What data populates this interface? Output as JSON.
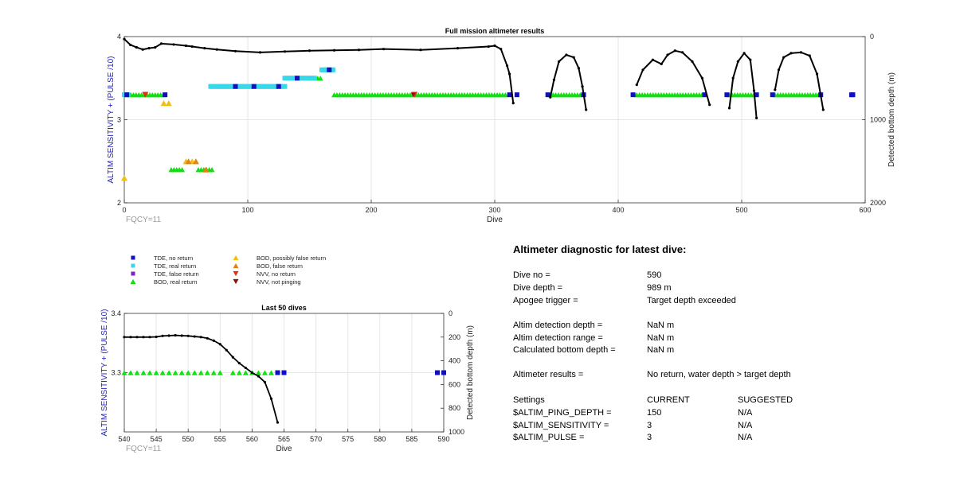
{
  "colors": {
    "tde_no_return": "#1010c0",
    "tde_real_return": "#38d8e8",
    "tde_false_return": "#8020c8",
    "bod_real_return": "#10e010",
    "bod_possibly_false": "#f0c010",
    "bod_false_return": "#e88010",
    "nvv_no_return": "#e03010",
    "nvv_not_pinging": "#901010",
    "depth_line": "#000000",
    "axis_label": "#2020c0"
  },
  "chart_data": [
    {
      "type": "scatter",
      "title": "Full mission altimeter results",
      "xlabel": "Dive",
      "ylabel": "ALTIM SENSITIVITY + (PULSE /10)",
      "ylabel_right": "Detected bottom depth (m)",
      "xlim": [
        0,
        600
      ],
      "ylim": [
        2,
        4
      ],
      "ylim_right": [
        0,
        2000
      ],
      "x_ticks": [
        "0",
        "100",
        "200",
        "300",
        "400",
        "500",
        "600"
      ],
      "y_ticks": [
        "2",
        "3",
        "4"
      ],
      "y_ticks_right": [
        "0",
        "1000",
        "2000"
      ],
      "grid": true,
      "annotation": "FQCY=11",
      "markers": {
        "bod_real_return": [
          {
            "x_start": 3,
            "x_end": 32,
            "y": 3.3
          },
          {
            "x_start": 170,
            "x_end": 310,
            "y": 3.3
          },
          {
            "x_start": 345,
            "x_end": 370,
            "y": 3.3
          },
          {
            "x_start": 415,
            "x_end": 468,
            "y": 3.3
          },
          {
            "x_start": 490,
            "x_end": 510,
            "y": 3.3
          },
          {
            "x_start": 527,
            "x_end": 563,
            "y": 3.3
          },
          {
            "x_start": 38,
            "x_end": 48,
            "y": 2.4
          },
          {
            "x_start": 60,
            "x_end": 72,
            "y": 2.4
          },
          {
            "x_start": 150,
            "x_end": 160,
            "y": 3.5
          }
        ],
        "tde_real_return": [
          {
            "x_start": 0,
            "x_end": 3,
            "y": 3.3
          },
          {
            "x_start": 70,
            "x_end": 130,
            "y": 3.4
          },
          {
            "x_start": 130,
            "x_end": 155,
            "y": 3.5
          },
          {
            "x_start": 160,
            "x_end": 170,
            "y": 3.6
          }
        ],
        "tde_no_return": [
          {
            "x": 2,
            "y": 3.3
          },
          {
            "x": 33,
            "y": 3.3
          },
          {
            "x": 312,
            "y": 3.3
          },
          {
            "x": 318,
            "y": 3.3
          },
          {
            "x": 343,
            "y": 3.3
          },
          {
            "x": 372,
            "y": 3.3
          },
          {
            "x": 412,
            "y": 3.3
          },
          {
            "x": 470,
            "y": 3.3
          },
          {
            "x": 488,
            "y": 3.3
          },
          {
            "x": 512,
            "y": 3.3
          },
          {
            "x": 525,
            "y": 3.3
          },
          {
            "x": 564,
            "y": 3.3
          },
          {
            "x": 589,
            "y": 3.3
          },
          {
            "x": 590,
            "y": 3.3
          },
          {
            "x": 90,
            "y": 3.4
          },
          {
            "x": 105,
            "y": 3.4
          },
          {
            "x": 125,
            "y": 3.4
          },
          {
            "x": 140,
            "y": 3.5
          },
          {
            "x": 166,
            "y": 3.6
          }
        ],
        "bod_possibly_false": [
          {
            "x": 0,
            "y": 2.3
          },
          {
            "x": 32,
            "y": 3.2
          },
          {
            "x": 36,
            "y": 3.2
          },
          {
            "x": 50,
            "y": 2.5
          },
          {
            "x": 55,
            "y": 2.5
          }
        ],
        "bod_false_return": [
          {
            "x": 52,
            "y": 2.5
          },
          {
            "x": 58,
            "y": 2.5
          },
          {
            "x": 66,
            "y": 2.4
          }
        ],
        "nvv_no_return": [
          {
            "x": 17,
            "y": 3.3
          },
          {
            "x": 235,
            "y": 3.3
          }
        ],
        "nvv_not_pinging": [
          {
            "x": 234,
            "y": 3.3
          }
        ]
      },
      "depth_series": [
        [
          [
            0,
            30
          ],
          [
            5,
            100
          ],
          [
            10,
            130
          ],
          [
            15,
            155
          ],
          [
            20,
            140
          ],
          [
            25,
            130
          ],
          [
            30,
            85
          ],
          [
            40,
            95
          ],
          [
            50,
            110
          ],
          [
            55,
            120
          ],
          [
            65,
            140
          ],
          [
            75,
            155
          ],
          [
            90,
            175
          ],
          [
            110,
            190
          ],
          [
            130,
            180
          ],
          [
            150,
            170
          ],
          [
            170,
            165
          ],
          [
            190,
            160
          ],
          [
            210,
            150
          ],
          [
            240,
            160
          ],
          [
            270,
            140
          ],
          [
            295,
            120
          ],
          [
            300,
            110
          ],
          [
            305,
            150
          ],
          [
            310,
            350
          ],
          [
            312,
            450
          ],
          [
            315,
            800
          ]
        ],
        [
          [
            345,
            730
          ],
          [
            348,
            520
          ],
          [
            352,
            300
          ],
          [
            358,
            220
          ],
          [
            364,
            250
          ],
          [
            368,
            380
          ],
          [
            371,
            600
          ],
          [
            374,
            880
          ]
        ],
        [
          [
            415,
            580
          ],
          [
            420,
            400
          ],
          [
            428,
            280
          ],
          [
            435,
            330
          ],
          [
            440,
            220
          ],
          [
            446,
            170
          ],
          [
            452,
            190
          ],
          [
            460,
            300
          ],
          [
            468,
            500
          ],
          [
            474,
            820
          ]
        ],
        [
          [
            490,
            860
          ],
          [
            493,
            500
          ],
          [
            497,
            300
          ],
          [
            502,
            200
          ],
          [
            507,
            280
          ],
          [
            510,
            650
          ],
          [
            512,
            980
          ]
        ],
        [
          [
            527,
            640
          ],
          [
            530,
            400
          ],
          [
            534,
            250
          ],
          [
            540,
            200
          ],
          [
            548,
            190
          ],
          [
            555,
            230
          ],
          [
            561,
            450
          ],
          [
            566,
            880
          ]
        ]
      ]
    },
    {
      "type": "scatter",
      "title": "Last 50 dives",
      "xlabel": "Dive",
      "ylabel": "ALTIM SENSITIVITY + (PULSE /10)",
      "ylabel_right": "Detected bottom depth (m)",
      "xlim": [
        540,
        590
      ],
      "ylim": [
        3.2,
        3.4
      ],
      "ylim_right": [
        0,
        1000
      ],
      "x_ticks": [
        "540",
        "545",
        "550",
        "555",
        "560",
        "565",
        "570",
        "575",
        "580",
        "585",
        "590"
      ],
      "y_ticks": [
        "3.3",
        "3.4"
      ],
      "y_ticks_right": [
        "0",
        "200",
        "400",
        "600",
        "800",
        "1000"
      ],
      "grid": true,
      "annotation": "FQCY=11",
      "markers": {
        "bod_real_return": [
          540,
          541,
          542,
          543,
          544,
          545,
          546,
          547,
          548,
          549,
          550,
          551,
          552,
          553,
          554,
          555,
          557,
          558,
          559,
          560,
          561,
          562,
          563
        ],
        "bod_real_return_y": 3.3,
        "tde_no_return": [
          564,
          565,
          589,
          590
        ],
        "tde_no_return_y": 3.3
      },
      "depth_series": [
        [
          540,
          200
        ],
        [
          541,
          200
        ],
        [
          542,
          200
        ],
        [
          543,
          200
        ],
        [
          544,
          200
        ],
        [
          545,
          198
        ],
        [
          546,
          190
        ],
        [
          547,
          188
        ],
        [
          548,
          185
        ],
        [
          549,
          188
        ],
        [
          550,
          190
        ],
        [
          551,
          195
        ],
        [
          552,
          200
        ],
        [
          553,
          210
        ],
        [
          554,
          230
        ],
        [
          555,
          260
        ],
        [
          556,
          310
        ],
        [
          557,
          370
        ],
        [
          558,
          420
        ],
        [
          559,
          460
        ],
        [
          560,
          500
        ],
        [
          561,
          530
        ],
        [
          562,
          580
        ],
        [
          563,
          720
        ],
        [
          564,
          920
        ]
      ]
    }
  ],
  "legend": {
    "items": [
      {
        "key": "tde_no_return",
        "label": "TDE, no return",
        "shape": "square"
      },
      {
        "key": "tde_real_return",
        "label": "TDE, real return",
        "shape": "square"
      },
      {
        "key": "tde_false_return",
        "label": "TDE, false return",
        "shape": "square"
      },
      {
        "key": "bod_real_return",
        "label": "BOD, real return",
        "shape": "triangle-up"
      },
      {
        "key": "bod_possibly_false",
        "label": "BOD, possibly false return",
        "shape": "triangle-up"
      },
      {
        "key": "bod_false_return",
        "label": "BOD, false return",
        "shape": "triangle-up"
      },
      {
        "key": "nvv_no_return",
        "label": "NVV, no return",
        "shape": "triangle-down"
      },
      {
        "key": "nvv_not_pinging",
        "label": "NVV, not pinging",
        "shape": "triangle-down"
      }
    ]
  },
  "diagnostic": {
    "title": "Altimeter diagnostic for latest dive:",
    "rows": [
      {
        "key": "Dive no =",
        "value": "590"
      },
      {
        "key": "Dive depth =",
        "value": "989 m"
      },
      {
        "key": "Apogee trigger =",
        "value": "Target depth exceeded"
      },
      {
        "key": "Altim detection depth =",
        "value": "NaN m"
      },
      {
        "key": "Altim detection range =",
        "value": "NaN m"
      },
      {
        "key": "Calculated bottom depth =",
        "value": "NaN m"
      },
      {
        "key": "Altimeter results =",
        "value": "No return, water depth > target depth"
      }
    ],
    "settings": {
      "header": {
        "key": "Settings",
        "current": "CURRENT",
        "suggested": "SUGGESTED"
      },
      "rows": [
        {
          "key": "$ALTIM_PING_DEPTH =",
          "current": "150",
          "suggested": "N/A"
        },
        {
          "key": "$ALTIM_SENSITIVITY =",
          "current": "3",
          "suggested": "N/A"
        },
        {
          "key": "$ALTIM_PULSE =",
          "current": "3",
          "suggested": "N/A"
        }
      ]
    }
  }
}
